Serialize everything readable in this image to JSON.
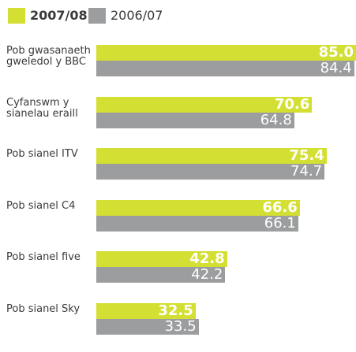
{
  "chart_data": {
    "type": "bar",
    "orientation": "horizontal",
    "categories": [
      "Pob gwasanaeth gweledol y BBC",
      "Cyfanswm y sianelau eraill",
      "Pob sianel ITV",
      "Pob sianel C4",
      "Pob sianel five",
      "Pob sianel Sky"
    ],
    "series": [
      {
        "name": "2007/08",
        "color": "#d3df33",
        "values": [
          85.0,
          70.6,
          75.4,
          66.6,
          42.8,
          32.5
        ],
        "value_labels": [
          "85.0",
          "70.6",
          "75.4",
          "66.6",
          "42.8",
          "32.5"
        ]
      },
      {
        "name": "2006/07",
        "color": "#9c9d9f",
        "values": [
          84.4,
          64.8,
          74.7,
          66.1,
          42.2,
          33.5
        ],
        "value_labels": [
          "84.4",
          "64.8",
          "74.7",
          "66.1",
          "42.2",
          "33.5"
        ]
      }
    ],
    "legend": "top-left"
  }
}
